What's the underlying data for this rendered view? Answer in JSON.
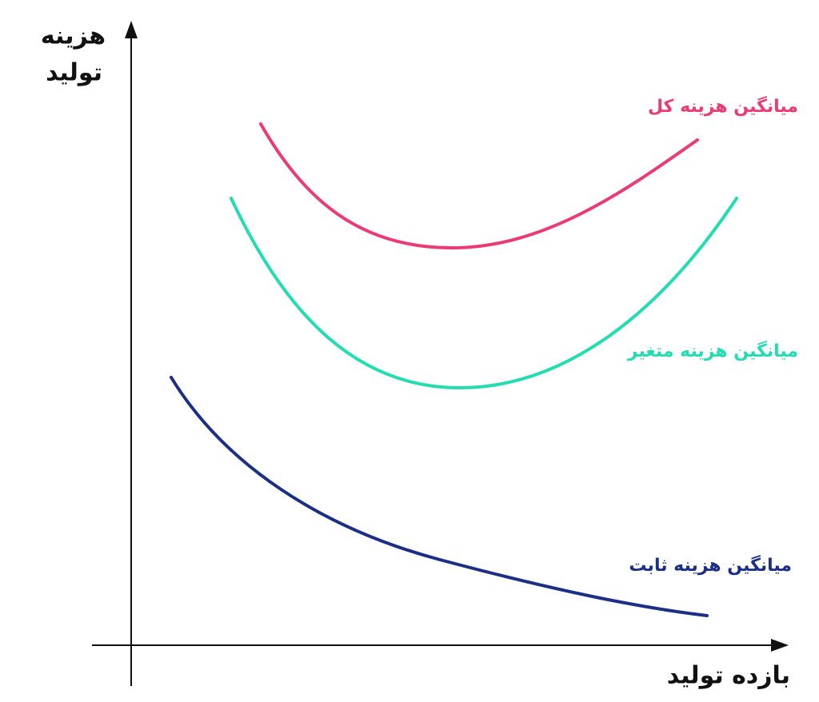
{
  "axes": {
    "y_label": [
      "هزینه",
      "تولید"
    ],
    "x_label": "بازده تولید"
  },
  "curves": [
    {
      "label": "میانگین هزینه کل",
      "color": "#ec3a72"
    },
    {
      "label": "میانگین هزینه متغیر",
      "color": "#22dcb2"
    },
    {
      "label": "میانگین هزینه ثابت",
      "color": "#1b2f86"
    }
  ]
}
